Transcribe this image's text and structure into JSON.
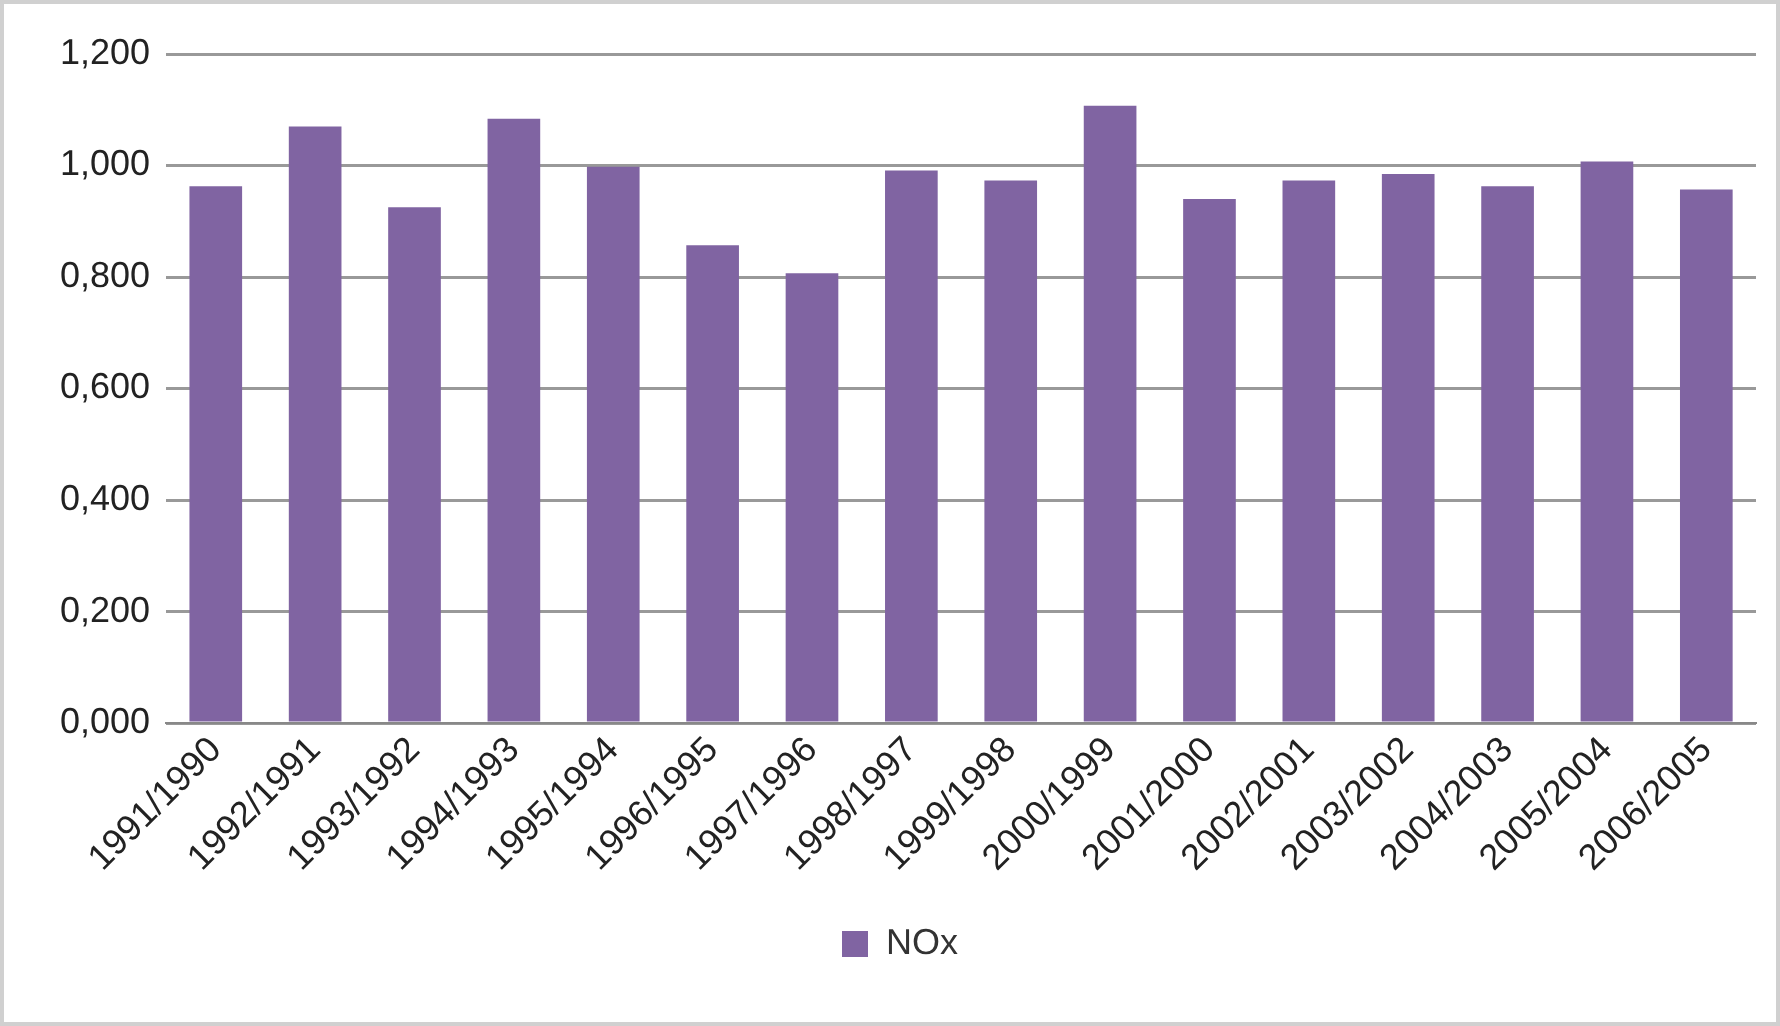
{
  "chart_data": {
    "type": "bar",
    "categories": [
      "1991/1990",
      "1992/1991",
      "1993/1992",
      "1994/1993",
      "1995/1994",
      "1996/1995",
      "1997/1996",
      "1998/1997",
      "1999/1998",
      "2000/1999",
      "2001/2000",
      "2002/2001",
      "2003/2002",
      "2004/2003",
      "2005/2004",
      "2006/2005"
    ],
    "series": [
      {
        "name": "NOx",
        "color": "#8064a2",
        "values": [
          0.963,
          1.07,
          0.925,
          1.084,
          0.998,
          0.857,
          0.807,
          0.991,
          0.973,
          1.107,
          0.94,
          0.973,
          0.985,
          0.963,
          1.007,
          0.957
        ]
      }
    ],
    "ylim": [
      0,
      1.2
    ],
    "yticks": [
      {
        "value": 0,
        "label": "0,000"
      },
      {
        "value": 0.2,
        "label": "0,200"
      },
      {
        "value": 0.4,
        "label": "0,400"
      },
      {
        "value": 0.6,
        "label": "0,600"
      },
      {
        "value": 0.8,
        "label": "0,800"
      },
      {
        "value": 1,
        "label": "1,000"
      },
      {
        "value": 1.2,
        "label": "1,200"
      }
    ],
    "grid": "y",
    "legend": "bottom"
  }
}
